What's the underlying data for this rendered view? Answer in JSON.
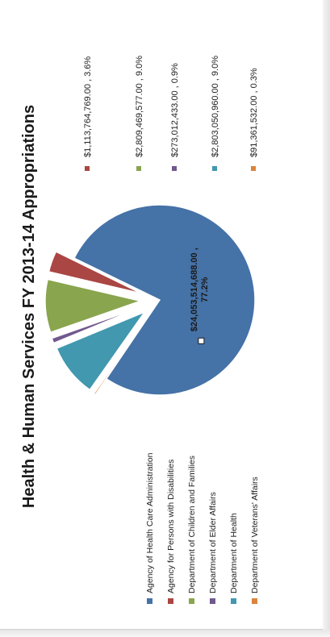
{
  "chart_data": {
    "type": "pie",
    "title": "Health & Human Services FY 2013-14 Appropriations",
    "slices": [
      {
        "name": "Agency of Health Care Administration",
        "value": 24053514688.0,
        "label": "$24,053,514,688.00 ,",
        "pct_label": "77.2%",
        "color": "#4572a7"
      },
      {
        "name": "Agency for Persons with Disabilities",
        "value": 1113764769.0,
        "label": "$1,113,764,769.00 , 3.6%",
        "color": "#aa4643"
      },
      {
        "name": "Department of Children and Families",
        "value": 2809469577.0,
        "label": "$2,809,469,577.00 , 9.0%",
        "color": "#89a54e"
      },
      {
        "name": "Department of Elder Affairs",
        "value": 273012433.0,
        "label": "$273,012,433.00 , 0.9%",
        "color": "#71588f"
      },
      {
        "name": "Department of Health",
        "value": 2803050960.0,
        "label": "$2,803,050,960.00 , 9.0%",
        "color": "#4198af"
      },
      {
        "name": "Department of Veterans' Affairs",
        "value": 91361532.0,
        "label": "$91,361,532.00 , 0.3%",
        "color": "#db843d"
      }
    ],
    "legend_position": "bottom"
  }
}
